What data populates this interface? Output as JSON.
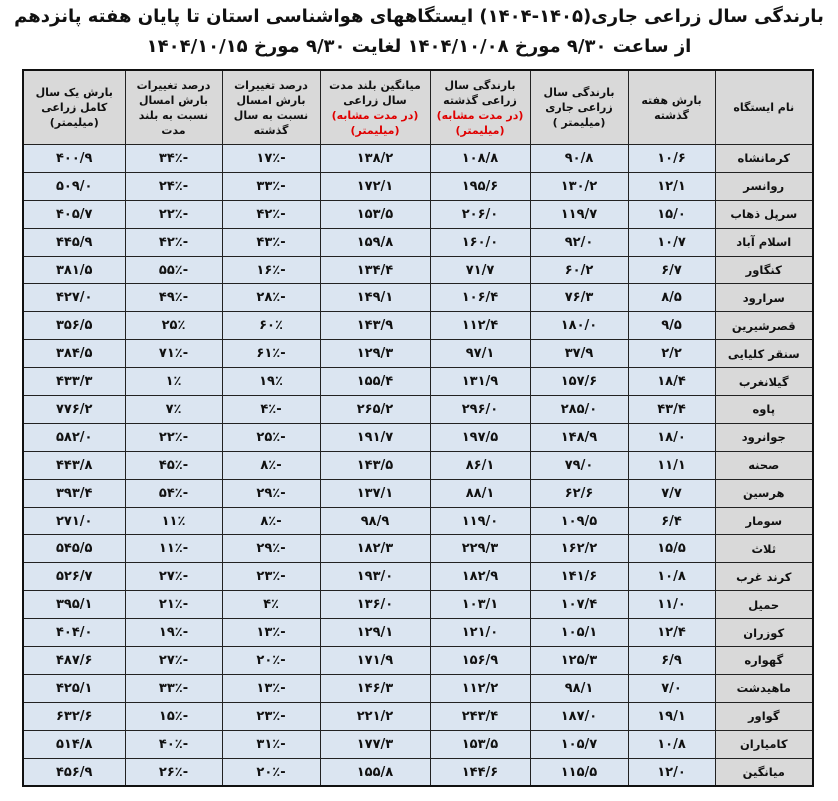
{
  "title": {
    "line1": "بارندگی سال زراعی جاری(۱۴۰۵-۱۴۰۴) ایستگاههای هواشناسی استان تا پایان هفته پانزدهم",
    "line2": "از ساعت ۹/۳۰ مورخ ۱۴۰۴/۱۰/۰۸ لغایت ۹/۳۰ مورخ ۱۴۰۴/۱۰/۱۵"
  },
  "headers": [
    {
      "text": "نام ایستگاه",
      "red": ""
    },
    {
      "text": "بارش هفته گذشته",
      "red": ""
    },
    {
      "text": "بارندگی سال زراعی جاری (میلیمتر )",
      "red": ""
    },
    {
      "text": "بارندگی سال زراعی گذشته",
      "red": "(در مدت مشابه) (میلیمتر)"
    },
    {
      "text": "میانگین بلند مدت سال زراعی",
      "red": "(در مدت مشابه) (میلیمتر)"
    },
    {
      "text": "درصد تغییرات بارش امسال نسبت به سال گذشته",
      "red": ""
    },
    {
      "text": "درصد تغییرات بارش امسال نسبت به بلند مدت",
      "red": ""
    },
    {
      "text": "بارش یک سال کامل زراعی (میلیمتر)",
      "red": ""
    }
  ],
  "rows": [
    [
      "کرمانشاه",
      "۱۰/۶",
      "۹۰/۸",
      "۱۰۸/۸",
      "۱۳۸/۲",
      "-۱۷٪",
      "-۳۴٪",
      "۴۰۰/۹"
    ],
    [
      "روانسر",
      "۱۲/۱",
      "۱۳۰/۲",
      "۱۹۵/۶",
      "۱۷۲/۱",
      "-۳۳٪",
      "-۲۴٪",
      "۵۰۹/۰"
    ],
    [
      "سرپل ذهاب",
      "۱۵/۰",
      "۱۱۹/۷",
      "۲۰۶/۰",
      "۱۵۳/۵",
      "-۴۲٪",
      "-۲۲٪",
      "۴۰۵/۷"
    ],
    [
      "اسلام آباد",
      "۱۰/۷",
      "۹۲/۰",
      "۱۶۰/۰",
      "۱۵۹/۸",
      "-۴۳٪",
      "-۴۲٪",
      "۴۴۵/۹"
    ],
    [
      "کنگاور",
      "۶/۷",
      "۶۰/۲",
      "۷۱/۷",
      "۱۳۴/۴",
      "-۱۶٪",
      "-۵۵٪",
      "۳۸۱/۵"
    ],
    [
      "سرارود",
      "۸/۵",
      "۷۶/۳",
      "۱۰۶/۴",
      "۱۴۹/۱",
      "-۲۸٪",
      "-۴۹٪",
      "۴۲۷/۰"
    ],
    [
      "قصرشیرین",
      "۹/۵",
      "۱۸۰/۰",
      "۱۱۲/۴",
      "۱۴۳/۹",
      "۶۰٪",
      "۲۵٪",
      "۳۵۶/۵"
    ],
    [
      "سنقر کلیایی",
      "۲/۲",
      "۳۷/۹",
      "۹۷/۱",
      "۱۲۹/۳",
      "-۶۱٪",
      "-۷۱٪",
      "۳۸۴/۵"
    ],
    [
      "گیلانغرب",
      "۱۸/۴",
      "۱۵۷/۶",
      "۱۳۱/۹",
      "۱۵۵/۴",
      "۱۹٪",
      "۱٪",
      "۴۳۳/۳"
    ],
    [
      "پاوه",
      "۴۳/۴",
      "۲۸۵/۰",
      "۲۹۶/۰",
      "۲۶۵/۲",
      "-۴٪",
      "۷٪",
      "۷۷۶/۲"
    ],
    [
      "جوانرود",
      "۱۸/۰",
      "۱۴۸/۹",
      "۱۹۷/۵",
      "۱۹۱/۷",
      "-۲۵٪",
      "-۲۲٪",
      "۵۸۲/۰"
    ],
    [
      "صحنه",
      "۱۱/۱",
      "۷۹/۰",
      "۸۶/۱",
      "۱۴۳/۵",
      "-۸٪",
      "-۴۵٪",
      "۴۴۳/۸"
    ],
    [
      "هرسین",
      "۷/۷",
      "۶۲/۶",
      "۸۸/۱",
      "۱۳۷/۱",
      "-۲۹٪",
      "-۵۴٪",
      "۳۹۳/۴"
    ],
    [
      "سومار",
      "۶/۴",
      "۱۰۹/۵",
      "۱۱۹/۰",
      "۹۸/۹",
      "-۸٪",
      "۱۱٪",
      "۲۷۱/۰"
    ],
    [
      "ثلاث",
      "۱۵/۵",
      "۱۶۲/۲",
      "۲۲۹/۳",
      "۱۸۲/۳",
      "-۲۹٪",
      "-۱۱٪",
      "۵۴۵/۵"
    ],
    [
      "کرند غرب",
      "۱۰/۸",
      "۱۴۱/۶",
      "۱۸۲/۹",
      "۱۹۳/۰",
      "-۲۳٪",
      "-۲۷٪",
      "۵۲۶/۷"
    ],
    [
      "حمیل",
      "۱۱/۰",
      "۱۰۷/۴",
      "۱۰۳/۱",
      "۱۳۶/۰",
      "۴٪",
      "-۲۱٪",
      "۳۹۵/۱"
    ],
    [
      "کوزران",
      "۱۲/۴",
      "۱۰۵/۱",
      "۱۲۱/۰",
      "۱۲۹/۱",
      "-۱۳٪",
      "-۱۹٪",
      "۴۰۴/۰"
    ],
    [
      "گهواره",
      "۶/۹",
      "۱۲۵/۳",
      "۱۵۶/۹",
      "۱۷۱/۹",
      "-۲۰٪",
      "-۲۷٪",
      "۴۸۷/۶"
    ],
    [
      "ماهیدشت",
      "۷/۰",
      "۹۸/۱",
      "۱۱۲/۲",
      "۱۴۶/۳",
      "-۱۳٪",
      "-۳۳٪",
      "۴۲۵/۱"
    ],
    [
      "گواور",
      "۱۹/۱",
      "۱۸۷/۰",
      "۲۴۳/۴",
      "۲۲۱/۲",
      "-۲۳٪",
      "-۱۵٪",
      "۶۳۲/۶"
    ],
    [
      "کامیاران",
      "۱۰/۸",
      "۱۰۵/۷",
      "۱۵۳/۵",
      "۱۷۷/۳",
      "-۳۱٪",
      "-۴۰٪",
      "۵۱۴/۸"
    ],
    [
      "میانگین",
      "۱۲/۰",
      "۱۱۵/۵",
      "۱۴۴/۶",
      "۱۵۵/۸",
      "-۲۰٪",
      "-۲۶٪",
      "۴۵۶/۹"
    ]
  ],
  "colors": {
    "header_bg": "#d9d9d9",
    "cell_bg": "#dbe5f1",
    "highlight_text": "#e00000"
  }
}
